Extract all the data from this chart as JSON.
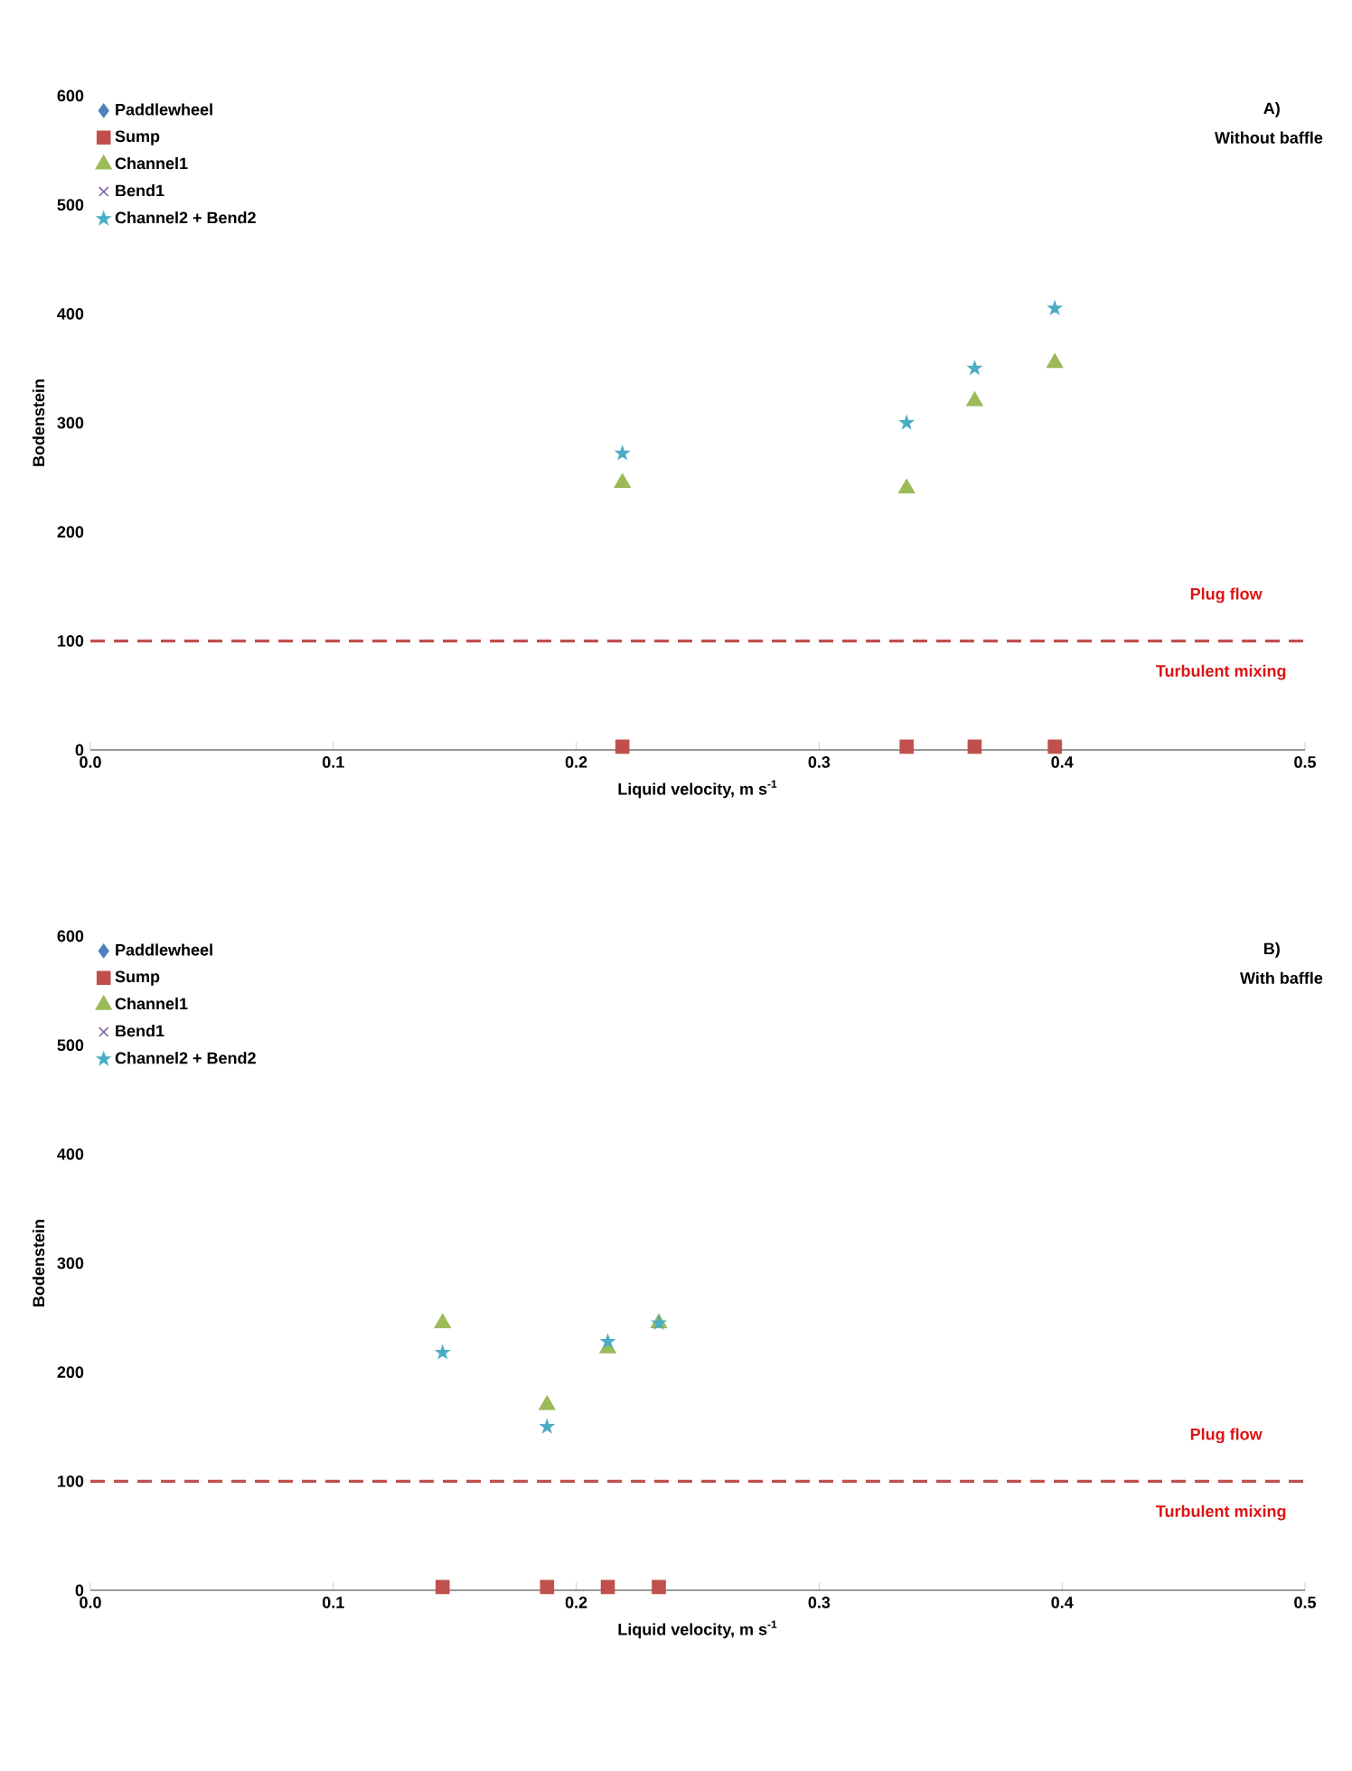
{
  "chart_data": [
    {
      "type": "scatter",
      "xlabel": "Liquid velocity, m s$^{-1}$",
      "ylabel": "Bodenstein",
      "x": [
        0.219,
        0.336,
        0.364,
        0.397
      ],
      "series": [
        {
          "name": "Paddlewheel",
          "color": "#4f81bd",
          "marker": "diamond",
          "values": [
            null,
            null,
            null,
            null
          ]
        },
        {
          "name": "Sump",
          "color": "#c0504d",
          "marker": "square",
          "values": [
            3,
            3,
            3,
            3
          ]
        },
        {
          "name": "Channel1",
          "color": "#9bbb59",
          "marker": "triangle",
          "values": [
            245,
            240,
            320,
            355
          ]
        },
        {
          "name": "Bend1",
          "color": "#8064a2",
          "marker": "cross",
          "values": [
            null,
            null,
            null,
            null
          ]
        },
        {
          "name": "Channel2 + Bend2",
          "color": "#4bacc6",
          "marker": "star",
          "values": [
            272,
            300,
            350,
            405
          ]
        }
      ],
      "xlim": [
        0,
        0.5
      ],
      "xticks": [
        {
          "value": 0,
          "label": "0.0"
        },
        0.1,
        0.2,
        0.3,
        0.4,
        0.5
      ],
      "ylim": [
        0,
        600
      ],
      "yticks": [
        0,
        100,
        200,
        300,
        400,
        500,
        600
      ],
      "grid": false,
      "legend": "top left",
      "ref_lines": [
        {
          "axis": "y",
          "value": 100,
          "color": "#c0504d",
          "line_style": "dashed"
        }
      ],
      "annotations": [
        "A)",
        "Without baffle",
        "Plug flow",
        "Turbulent mixing"
      ]
    },
    {
      "type": "scatter",
      "xlabel": "Liquid velocity, m s$^{-1}$",
      "ylabel": "Bodenstein",
      "x": [
        0.145,
        0.188,
        0.213,
        0.234
      ],
      "series": [
        {
          "name": "Paddlewheel",
          "color": "#4f81bd",
          "marker": "diamond",
          "values": [
            null,
            null,
            null,
            null
          ]
        },
        {
          "name": "Sump",
          "color": "#c0504d",
          "marker": "square",
          "values": [
            3,
            3,
            3,
            3
          ]
        },
        {
          "name": "Channel1",
          "color": "#9bbb59",
          "marker": "triangle",
          "values": [
            245,
            170,
            222,
            245
          ]
        },
        {
          "name": "Bend1",
          "color": "#8064a2",
          "marker": "cross",
          "values": [
            null,
            null,
            null,
            null
          ]
        },
        {
          "name": "Channel2 + Bend2",
          "color": "#4bacc6",
          "marker": "star",
          "values": [
            218,
            150,
            228,
            245
          ]
        }
      ],
      "xlim": [
        0,
        0.5
      ],
      "xticks": [
        {
          "value": 0,
          "label": "0.0"
        },
        0.1,
        0.2,
        0.3,
        0.4,
        0.5
      ],
      "ylim": [
        0,
        600
      ],
      "yticks": [
        0,
        100,
        200,
        300,
        400,
        500,
        600
      ],
      "grid": false,
      "legend": "top left",
      "ref_lines": [
        {
          "axis": "y",
          "value": 100,
          "color": "#c0504d",
          "line_style": "dashed"
        }
      ],
      "annotations": [
        "B)",
        "With baffle",
        "Plug flow",
        "Turbulent mixing"
      ]
    }
  ]
}
